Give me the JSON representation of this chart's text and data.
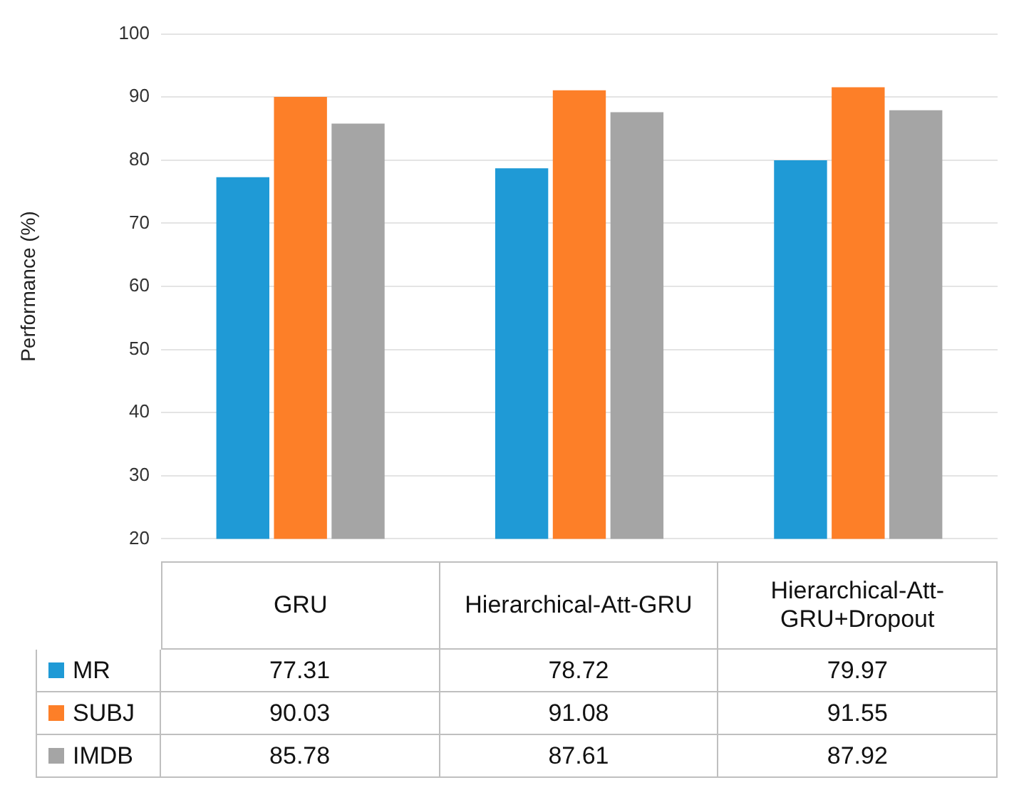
{
  "chart_data": {
    "type": "bar",
    "ylabel": "Performance (%)",
    "categories": [
      "GRU",
      "Hierarchical-Att-GRU",
      "Hierarchical-Att-GRU+Dropout"
    ],
    "series": [
      {
        "name": "MR",
        "color": "#1f9ad6",
        "values": [
          77.31,
          78.72,
          79.97
        ]
      },
      {
        "name": "SUBJ",
        "color": "#fd7f28",
        "values": [
          90.03,
          91.08,
          91.55
        ]
      },
      {
        "name": "IMDB",
        "color": "#a5a5a5",
        "values": [
          85.78,
          87.61,
          87.92
        ]
      }
    ],
    "ylim": [
      20,
      100
    ],
    "yticks": [
      20,
      30,
      40,
      50,
      60,
      70,
      80,
      90,
      100
    ],
    "grid": "y",
    "legend": "bottom",
    "data_labels": true
  }
}
